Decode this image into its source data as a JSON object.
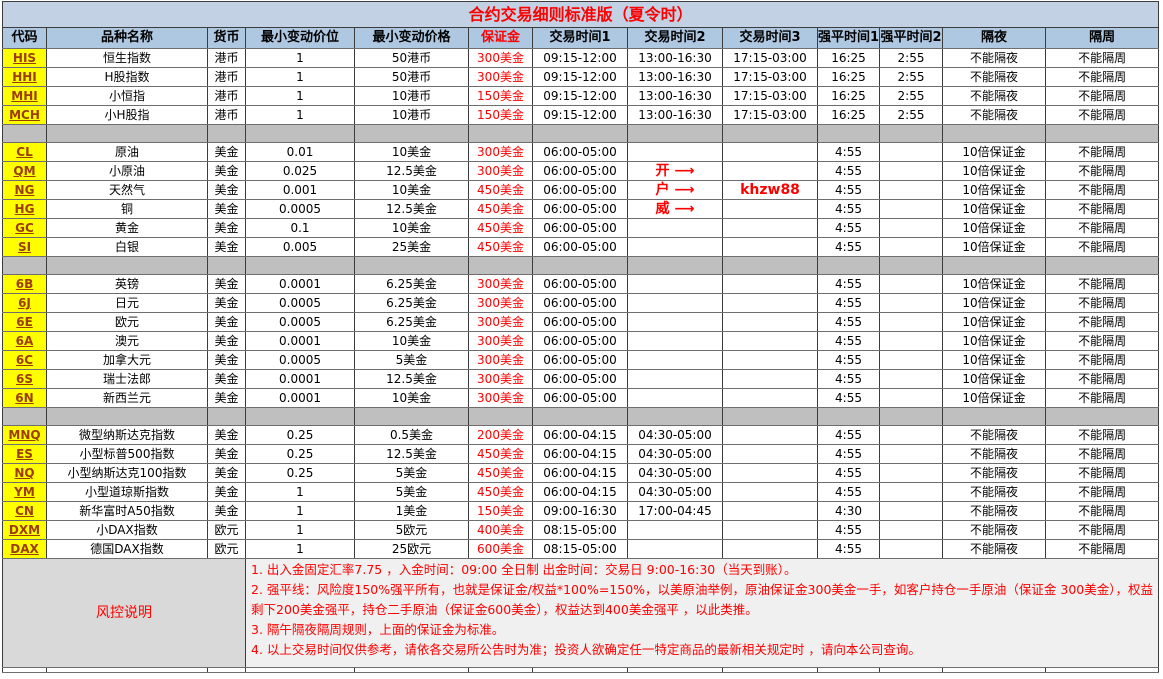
{
  "title": "合约交易细则标准版（夏令时）",
  "colors": {
    "title_bg": "#c2d2e4",
    "header_bg": "#aec8e2",
    "code_bg": "#ffff00",
    "code_text": "#9c3c00",
    "separator_bg": "#bfbfbf",
    "accent_red": "#ff0000",
    "risk_label_bg": "#d9d9d9",
    "notes_bg": "#f0f0f0"
  },
  "columns": [
    "代码",
    "品种名称",
    "货币",
    "最小变动价位",
    "最小变动价格",
    "保证金",
    "交易时间1",
    "交易时间2",
    "交易时间3",
    "强平时间1",
    "强平时间2",
    "隔夜",
    "隔周"
  ],
  "column_keys": [
    "code",
    "name",
    "currency",
    "min-tick",
    "tick-value",
    "margin",
    "session1",
    "session2",
    "session3",
    "force-close1",
    "force-close2",
    "overnight",
    "overweek"
  ],
  "rows": [
    {
      "cells": [
        "HIS",
        "恒生指数",
        "港币",
        "1",
        "50港币",
        "300美金",
        "09:15-12:00",
        "13:00-16:30",
        "17:15-03:00",
        "16:25",
        "2:55",
        "不能隔夜",
        "不能隔周"
      ]
    },
    {
      "cells": [
        "HHI",
        "H股指数",
        "港币",
        "1",
        "50港币",
        "300美金",
        "09:15-12:00",
        "13:00-16:30",
        "17:15-03:00",
        "16:25",
        "2:55",
        "不能隔夜",
        "不能隔周"
      ]
    },
    {
      "cells": [
        "MHI",
        "小恒指",
        "港币",
        "1",
        "10港币",
        "150美金",
        "09:15-12:00",
        "13:00-16:30",
        "17:15-03:00",
        "16:25",
        "2:55",
        "不能隔夜",
        "不能隔周"
      ]
    },
    {
      "cells": [
        "MCH",
        "小H股指",
        "港币",
        "1",
        "10港币",
        "150美金",
        "09:15-12:00",
        "13:00-16:30",
        "17:15-03:00",
        "16:25",
        "2:55",
        "不能隔夜",
        "不能隔周"
      ]
    },
    {
      "separator": true
    },
    {
      "cells": [
        "CL",
        "原油",
        "美金",
        "0.01",
        "10美金",
        "300美金",
        "06:00-05:00",
        "",
        "",
        "4:55",
        "",
        "10倍保证金",
        "不能隔周"
      ]
    },
    {
      "cells": [
        "QM",
        "小原油",
        "美金",
        "0.025",
        "12.5美金",
        "300美金",
        "06:00-05:00",
        "",
        "",
        "4:55",
        "",
        "10倍保证金",
        "不能隔周"
      ],
      "annotations": {
        "7": "开 ⟶"
      }
    },
    {
      "cells": [
        "NG",
        "天然气",
        "美金",
        "0.001",
        "10美金",
        "450美金",
        "06:00-05:00",
        "",
        "",
        "4:55",
        "",
        "10倍保证金",
        "不能隔周"
      ],
      "annotations": {
        "7": "户 ⟶",
        "8": "khzw88"
      }
    },
    {
      "cells": [
        "HG",
        "铜",
        "美金",
        "0.0005",
        "12.5美金",
        "450美金",
        "06:00-05:00",
        "",
        "",
        "4:55",
        "",
        "10倍保证金",
        "不能隔周"
      ],
      "annotations": {
        "7": "威 ⟶"
      }
    },
    {
      "cells": [
        "GC",
        "黄金",
        "美金",
        "0.1",
        "10美金",
        "450美金",
        "06:00-05:00",
        "",
        "",
        "4:55",
        "",
        "10倍保证金",
        "不能隔周"
      ]
    },
    {
      "cells": [
        "SI",
        "白银",
        "美金",
        "0.005",
        "25美金",
        "450美金",
        "06:00-05:00",
        "",
        "",
        "4:55",
        "",
        "10倍保证金",
        "不能隔周"
      ]
    },
    {
      "separator": true
    },
    {
      "cells": [
        "6B",
        "英镑",
        "美金",
        "0.0001",
        "6.25美金",
        "300美金",
        "06:00-05:00",
        "",
        "",
        "4:55",
        "",
        "10倍保证金",
        "不能隔周"
      ]
    },
    {
      "cells": [
        "6J",
        "日元",
        "美金",
        "0.0005",
        "6.25美金",
        "300美金",
        "06:00-05:00",
        "",
        "",
        "4:55",
        "",
        "10倍保证金",
        "不能隔周"
      ]
    },
    {
      "cells": [
        "6E",
        "欧元",
        "美金",
        "0.0005",
        "6.25美金",
        "300美金",
        "06:00-05:00",
        "",
        "",
        "4:55",
        "",
        "10倍保证金",
        "不能隔周"
      ]
    },
    {
      "cells": [
        "6A",
        "澳元",
        "美金",
        "0.0001",
        "10美金",
        "300美金",
        "06:00-05:00",
        "",
        "",
        "4:55",
        "",
        "10倍保证金",
        "不能隔周"
      ]
    },
    {
      "cells": [
        "6C",
        "加拿大元",
        "美金",
        "0.0005",
        "5美金",
        "300美金",
        "06:00-05:00",
        "",
        "",
        "4:55",
        "",
        "10倍保证金",
        "不能隔周"
      ]
    },
    {
      "cells": [
        "6S",
        "瑞士法郎",
        "美金",
        "0.0001",
        "12.5美金",
        "300美金",
        "06:00-05:00",
        "",
        "",
        "4:55",
        "",
        "10倍保证金",
        "不能隔周"
      ]
    },
    {
      "cells": [
        "6N",
        "新西兰元",
        "美金",
        "0.0001",
        "10美金",
        "300美金",
        "06:00-05:00",
        "",
        "",
        "4:55",
        "",
        "10倍保证金",
        "不能隔周"
      ]
    },
    {
      "separator": true
    },
    {
      "cells": [
        "MNQ",
        "微型纳斯达克指数",
        "美金",
        "0.25",
        "0.5美金",
        "200美金",
        "06:00-04:15",
        "04:30-05:00",
        "",
        "4:55",
        "",
        "不能隔夜",
        "不能隔周"
      ]
    },
    {
      "cells": [
        "ES",
        "小型标普500指数",
        "美金",
        "0.25",
        "12.5美金",
        "450美金",
        "06:00-04:15",
        "04:30-05:00",
        "",
        "4:55",
        "",
        "不能隔夜",
        "不能隔周"
      ]
    },
    {
      "cells": [
        "NQ",
        "小型纳斯达克100指数",
        "美金",
        "0.25",
        "5美金",
        "450美金",
        "06:00-04:15",
        "04:30-05:00",
        "",
        "4:55",
        "",
        "不能隔夜",
        "不能隔周"
      ]
    },
    {
      "cells": [
        "YM",
        "小型道琼斯指数",
        "美金",
        "1",
        "5美金",
        "450美金",
        "06:00-04:15",
        "04:30-05:00",
        "",
        "4:55",
        "",
        "不能隔夜",
        "不能隔周"
      ]
    },
    {
      "cells": [
        "CN",
        "新华富时A50指数",
        "美金",
        "1",
        "1美金",
        "150美金",
        "09:00-16:30",
        "17:00-04:45",
        "",
        "4:30",
        "",
        "不能隔夜",
        "不能隔周"
      ]
    },
    {
      "cells": [
        "DXM",
        "小DAX指数",
        "欧元",
        "1",
        "5欧元",
        "400美金",
        "08:15-05:00",
        "",
        "",
        "4:55",
        "",
        "不能隔夜",
        "不能隔周"
      ]
    },
    {
      "cells": [
        "DAX",
        "德国DAX指数",
        "欧元",
        "1",
        "25欧元",
        "600美金",
        "08:15-05:00",
        "",
        "",
        "4:55",
        "",
        "不能隔夜",
        "不能隔周"
      ]
    }
  ],
  "risk": {
    "label": "风控说明",
    "notes": [
      "1. 出入金固定汇率7.75 ，入金时间：09:00 全日制 出金时间：交易日 9:00-16:30（当天到账）。",
      "2. 强平线：风险度150%强平所有，也就是保证金/权益*100%=150%，以美原油举例，原油保证金300美金一手，如客户持仓一手原油（保证金 300美金），权益剩下200美金强平，持仓二手原油（保证金600美金），权益达到400美金强平 ，以此类推。",
      "3. 隔午隔夜隔周规则，上面的保证金为标准。",
      "4. 以上交易时间仅供参考，请依各交易所公告时为准；投资人欲确定任一特定商品的最新相关规定时 ，请向本公司查询。"
    ]
  }
}
